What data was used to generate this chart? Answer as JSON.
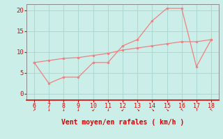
{
  "x_wind": [
    6,
    7,
    8,
    9,
    10,
    11,
    12,
    13,
    14,
    15,
    16,
    17,
    18
  ],
  "y_gust": [
    7.5,
    2.5,
    4.0,
    4.0,
    7.5,
    7.5,
    11.5,
    13.0,
    17.5,
    20.5,
    20.5,
    6.5,
    13.0
  ],
  "y_avg": [
    7.5,
    8.0,
    8.5,
    8.7,
    9.2,
    9.7,
    10.5,
    11.0,
    11.5,
    12.0,
    12.5,
    12.5,
    13.0
  ],
  "line_color": "#f08080",
  "bg_color": "#cceee8",
  "grid_color": "#aad8d0",
  "axis_label_color": "#dd0000",
  "tick_color": "#dd0000",
  "spine_color": "#888888",
  "xlabel": "Vent moyen/en rafales ( km/h )",
  "xlim": [
    5.5,
    18.5
  ],
  "ylim": [
    -1.5,
    21.5
  ],
  "yticks": [
    0,
    5,
    10,
    15,
    20
  ],
  "xticks": [
    6,
    7,
    8,
    9,
    10,
    11,
    12,
    13,
    14,
    15,
    16,
    17,
    18
  ],
  "arrow_chars": [
    "↗",
    "↓",
    "↓",
    "↓",
    "↙",
    "↓",
    "↙",
    "↘",
    "↘",
    "↘",
    "↖",
    "↑",
    "↖"
  ]
}
